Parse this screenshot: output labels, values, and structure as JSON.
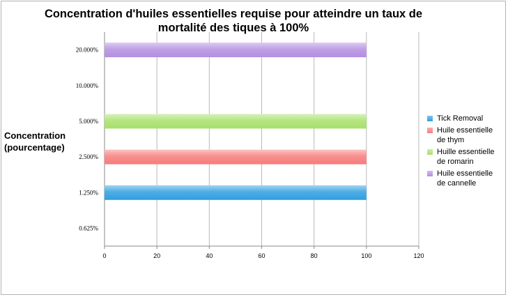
{
  "chart_data": {
    "type": "bar",
    "orientation": "horizontal",
    "title": "Concentration d'huiles essentielles requise pour atteindre un taux de mortalité des tiques à 100%",
    "ylabel": "Concentration (pourcentage)",
    "xlabel": "",
    "categories": [
      "0.625%",
      "1.250%",
      "2.500%",
      "5.000%",
      "10.000%",
      "20.000%"
    ],
    "xlim": [
      0,
      120
    ],
    "xticks": [
      "0",
      "20",
      "40",
      "60",
      "80",
      "100",
      "120"
    ],
    "grid": true,
    "legend_position": "right",
    "series": [
      {
        "name": "Tick Removal",
        "color": "#2f9fe0",
        "values": [
          null,
          100,
          null,
          null,
          null,
          null
        ]
      },
      {
        "name": "Huile essentielle de thym",
        "color": "#f77b7b",
        "values": [
          null,
          null,
          100,
          null,
          null,
          null
        ]
      },
      {
        "name": "Huille essentielle de romarin",
        "color": "#a8e06a",
        "values": [
          null,
          null,
          null,
          100,
          null,
          null
        ]
      },
      {
        "name": "Huile essentielle de cannelle",
        "color": "#b48ee0",
        "values": [
          null,
          null,
          null,
          null,
          null,
          100
        ]
      }
    ]
  }
}
